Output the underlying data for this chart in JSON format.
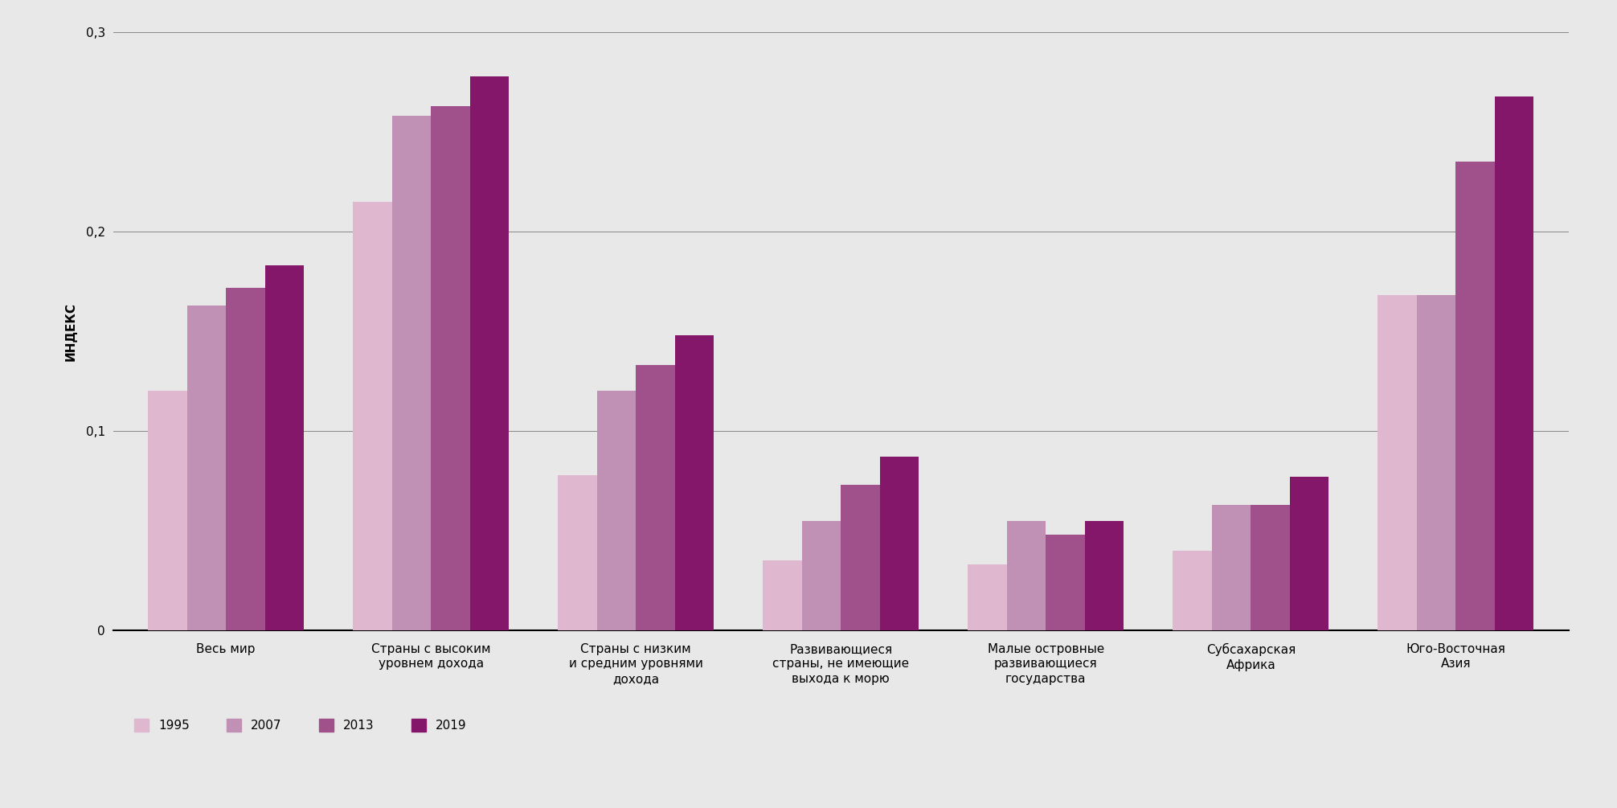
{
  "categories": [
    "Весь мир",
    "Страны с высоким\nуровнем дохода",
    "Страны с низким\nи средним уровнями\nдохода",
    "Развивающиеся\nстраны, не имеющие\nвыхода к морю",
    "Малые островные\nразвивающиеся\nгосударства",
    "Субсахарская\nАфрика",
    "Юго-Восточная\nАзия"
  ],
  "series": {
    "1995": [
      0.12,
      0.215,
      0.078,
      0.035,
      0.033,
      0.04,
      0.168
    ],
    "2007": [
      0.163,
      0.258,
      0.12,
      0.055,
      0.055,
      0.063,
      0.168
    ],
    "2013": [
      0.172,
      0.263,
      0.133,
      0.073,
      0.048,
      0.063,
      0.235
    ],
    "2019": [
      0.183,
      0.278,
      0.148,
      0.087,
      0.055,
      0.077,
      0.268
    ]
  },
  "colors": {
    "1995": "#DFB8D0",
    "2007": "#C090B5",
    "2013": "#A0508A",
    "2019": "#85176A"
  },
  "ylabel": "ИНДЕКС",
  "ylim": [
    0,
    0.3
  ],
  "yticks": [
    0,
    0.1,
    0.2,
    0.3
  ],
  "ytick_labels": [
    "0",
    "0,1",
    "0,2",
    "0,3"
  ],
  "background_color": "#E8E8E8",
  "bar_width": 0.19,
  "legend_labels": [
    "1995",
    "2007",
    "2013",
    "2019"
  ],
  "label_fontsize": 11,
  "tick_fontsize": 11,
  "ylabel_fontsize": 11
}
